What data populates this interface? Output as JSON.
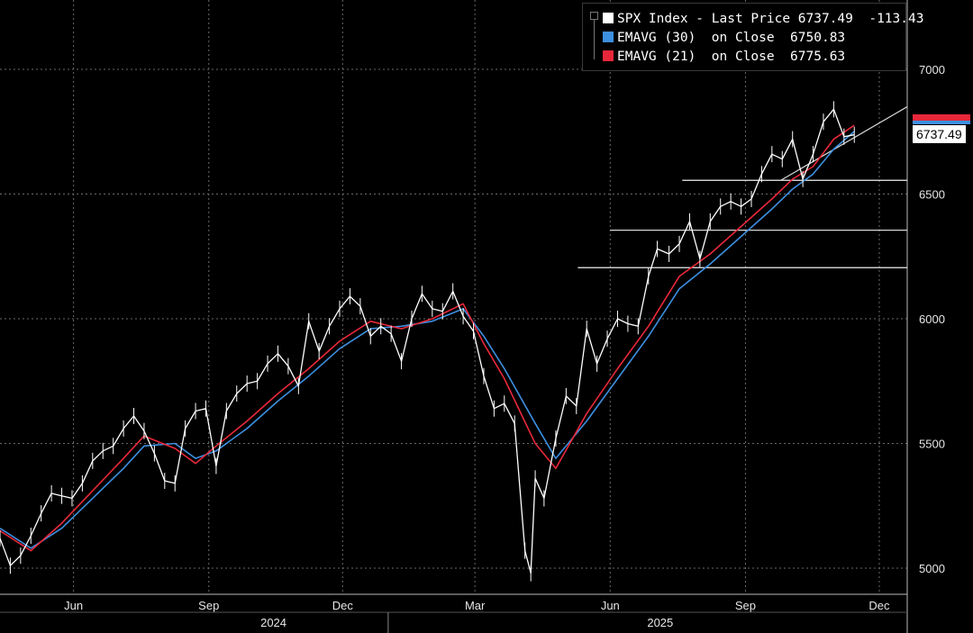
{
  "legend": {
    "row1": "SPX Index - Last Price 6737.49  -113.43",
    "row2": "EMAVG (30)  on Close  6750.83",
    "row3": "EMAVG (21)  on Close  6775.63"
  },
  "last_price_tag": "6737.49",
  "colors": {
    "price": "#ffffff",
    "ema30": "#3d8fe0",
    "ema21": "#e8283a",
    "grid": "#6a6a6a",
    "background": "#000000"
  },
  "chart_data": {
    "type": "line",
    "ylim": [
      4900,
      7250
    ],
    "yticks": [
      5000,
      5500,
      6000,
      6500,
      7000
    ],
    "xlim": [
      "2024-04-12",
      "2025-12-20"
    ],
    "month_ticks": [
      {
        "date": "2024-06-01",
        "label": "Jun"
      },
      {
        "date": "2024-09-01",
        "label": "Sep"
      },
      {
        "date": "2024-12-01",
        "label": "Dec"
      },
      {
        "date": "2025-03-01",
        "label": "Mar"
      },
      {
        "date": "2025-06-01",
        "label": "Jun"
      },
      {
        "date": "2025-09-01",
        "label": "Sep"
      },
      {
        "date": "2025-12-01",
        "label": "Dec"
      }
    ],
    "year_labels": [
      {
        "date": "2024-10-15",
        "label": "2024"
      },
      {
        "date": "2025-07-05",
        "label": "2025"
      }
    ],
    "year_divider": "2025-01-01",
    "series": [
      {
        "name": "SPX Index - Last Price",
        "key": "price",
        "x": [
          "2024-04-12",
          "2024-04-19",
          "2024-04-26",
          "2024-05-03",
          "2024-05-10",
          "2024-05-17",
          "2024-05-24",
          "2024-05-31",
          "2024-06-07",
          "2024-06-14",
          "2024-06-21",
          "2024-06-28",
          "2024-07-05",
          "2024-07-12",
          "2024-07-19",
          "2024-07-26",
          "2024-08-02",
          "2024-08-09",
          "2024-08-16",
          "2024-08-23",
          "2024-08-30",
          "2024-09-06",
          "2024-09-13",
          "2024-09-20",
          "2024-09-27",
          "2024-10-04",
          "2024-10-11",
          "2024-10-18",
          "2024-10-25",
          "2024-11-01",
          "2024-11-08",
          "2024-11-15",
          "2024-11-22",
          "2024-11-29",
          "2024-12-06",
          "2024-12-13",
          "2024-12-20",
          "2024-12-27",
          "2025-01-03",
          "2025-01-10",
          "2025-01-17",
          "2025-01-24",
          "2025-01-31",
          "2025-02-07",
          "2025-02-14",
          "2025-02-21",
          "2025-02-28",
          "2025-03-07",
          "2025-03-14",
          "2025-03-21",
          "2025-03-28",
          "2025-04-04",
          "2025-04-08",
          "2025-04-11",
          "2025-04-17",
          "2025-04-25",
          "2025-05-02",
          "2025-05-09",
          "2025-05-16",
          "2025-05-23",
          "2025-05-30",
          "2025-06-06",
          "2025-06-13",
          "2025-06-20",
          "2025-06-27",
          "2025-07-03",
          "2025-07-11",
          "2025-07-18",
          "2025-07-25",
          "2025-08-01",
          "2025-08-08",
          "2025-08-15",
          "2025-08-22",
          "2025-08-29",
          "2025-09-05",
          "2025-09-12",
          "2025-09-19",
          "2025-09-26",
          "2025-10-03",
          "2025-10-10",
          "2025-10-17",
          "2025-10-24",
          "2025-10-31",
          "2025-11-07",
          "2025-11-14"
        ],
        "values": [
          5120,
          5010,
          5050,
          5130,
          5220,
          5300,
          5290,
          5280,
          5340,
          5430,
          5470,
          5490,
          5560,
          5610,
          5550,
          5460,
          5350,
          5340,
          5560,
          5630,
          5640,
          5410,
          5630,
          5700,
          5740,
          5750,
          5820,
          5860,
          5810,
          5730,
          5990,
          5870,
          5970,
          6040,
          6090,
          6050,
          5930,
          5970,
          5940,
          5830,
          6000,
          6100,
          6040,
          6030,
          6110,
          6010,
          5950,
          5770,
          5640,
          5660,
          5580,
          5070,
          4980,
          5360,
          5280,
          5520,
          5690,
          5650,
          5960,
          5820,
          5920,
          6000,
          5980,
          5970,
          6170,
          6280,
          6260,
          6300,
          6390,
          6240,
          6390,
          6450,
          6470,
          6450,
          6480,
          6580,
          6660,
          6640,
          6720,
          6560,
          6660,
          6790,
          6840,
          6730,
          6737.49
        ]
      },
      {
        "name": "EMAVG (30) on Close",
        "key": "ema30",
        "x": [
          "2024-04-12",
          "2024-05-03",
          "2024-05-24",
          "2024-06-14",
          "2024-07-05",
          "2024-07-19",
          "2024-08-09",
          "2024-08-23",
          "2024-09-06",
          "2024-09-27",
          "2024-10-18",
          "2024-11-08",
          "2024-11-29",
          "2024-12-20",
          "2025-01-10",
          "2025-01-31",
          "2025-02-21",
          "2025-03-07",
          "2025-03-21",
          "2025-04-11",
          "2025-04-25",
          "2025-05-16",
          "2025-06-06",
          "2025-06-27",
          "2025-07-18",
          "2025-08-08",
          "2025-08-29",
          "2025-09-19",
          "2025-10-03",
          "2025-10-17",
          "2025-10-31",
          "2025-11-14"
        ],
        "values": [
          5160,
          5080,
          5160,
          5280,
          5400,
          5490,
          5500,
          5440,
          5470,
          5560,
          5670,
          5770,
          5880,
          5960,
          5970,
          5990,
          6040,
          5930,
          5800,
          5580,
          5440,
          5590,
          5760,
          5930,
          6120,
          6220,
          6330,
          6440,
          6520,
          6580,
          6680,
          6750.83
        ]
      },
      {
        "name": "EMAVG (21) on Close",
        "key": "ema21",
        "x": [
          "2024-04-12",
          "2024-05-03",
          "2024-05-24",
          "2024-06-14",
          "2024-07-05",
          "2024-07-19",
          "2024-08-09",
          "2024-08-23",
          "2024-09-06",
          "2024-09-27",
          "2024-10-18",
          "2024-11-08",
          "2024-11-29",
          "2024-12-20",
          "2025-01-10",
          "2025-01-31",
          "2025-02-21",
          "2025-03-07",
          "2025-03-21",
          "2025-04-11",
          "2025-04-25",
          "2025-05-16",
          "2025-06-06",
          "2025-06-27",
          "2025-07-18",
          "2025-08-08",
          "2025-08-29",
          "2025-09-19",
          "2025-10-03",
          "2025-10-17",
          "2025-10-31",
          "2025-11-14"
        ],
        "values": [
          5150,
          5070,
          5180,
          5310,
          5440,
          5530,
          5480,
          5420,
          5490,
          5590,
          5700,
          5800,
          5910,
          5990,
          5960,
          6000,
          6060,
          5900,
          5760,
          5500,
          5400,
          5620,
          5800,
          5970,
          6170,
          6260,
          6370,
          6480,
          6560,
          6610,
          6720,
          6775.63
        ]
      }
    ],
    "horizontal_lines": [
      {
        "y": 6555,
        "from": "2025-07-20",
        "to": "2025-12-20"
      },
      {
        "y": 6355,
        "from": "2025-06-01",
        "to": "2025-12-20"
      },
      {
        "y": 6205,
        "from": "2025-05-10",
        "to": "2025-12-20"
      }
    ],
    "trend_line": {
      "from": {
        "x": "2025-09-25",
        "y": 6555
      },
      "to": {
        "x": "2025-12-20",
        "y": 6850
      }
    }
  }
}
